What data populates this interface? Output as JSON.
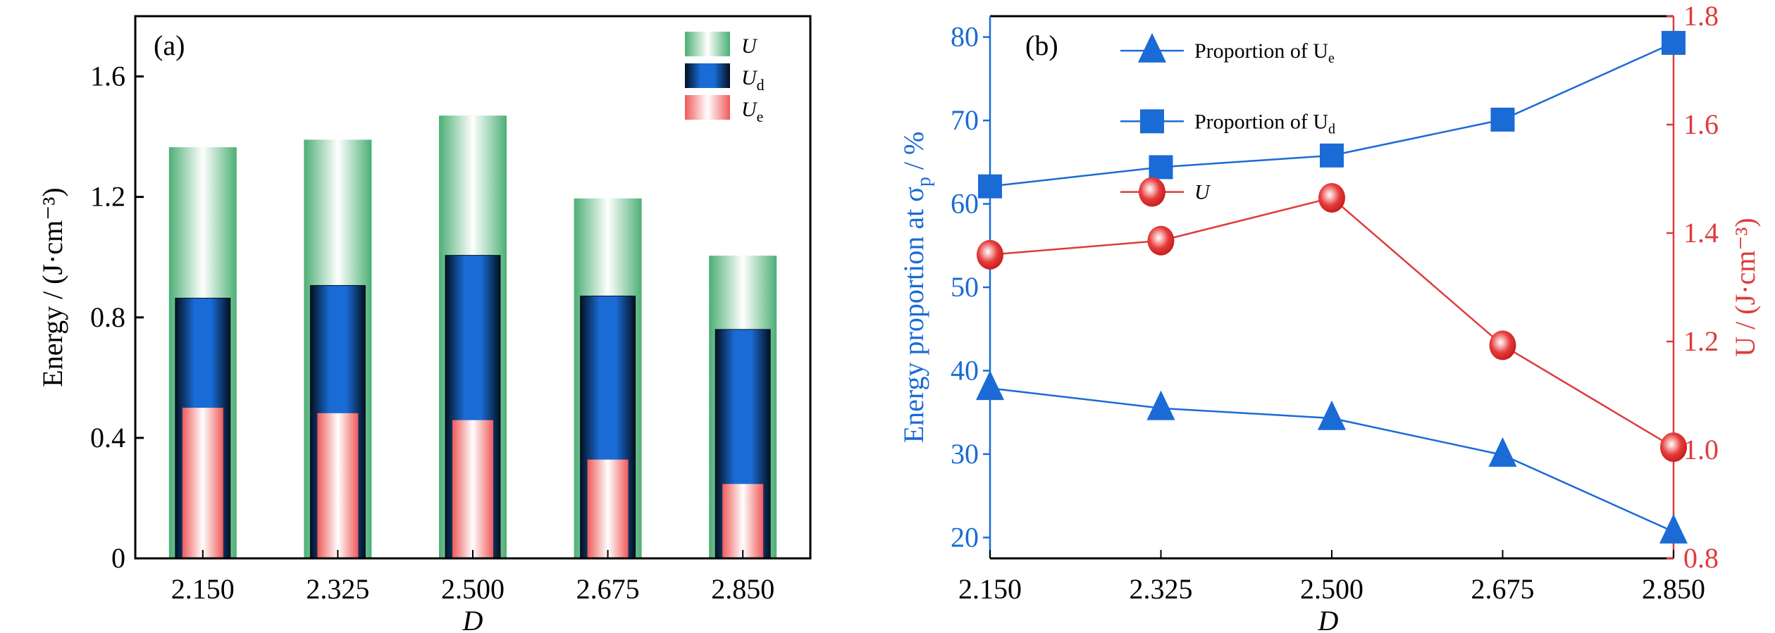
{
  "chart_data": [
    {
      "panel_label": "(a)",
      "type": "bar",
      "title": "",
      "xlabel": "D",
      "ylabel": "Energy / (J·cm⁻³)",
      "categories": [
        "2.150",
        "2.325",
        "2.500",
        "2.675",
        "2.850"
      ],
      "ylim": [
        0,
        1.8
      ],
      "yticks": [
        "0",
        "0.4",
        "0.8",
        "1.2",
        "1.6"
      ],
      "ytick_values": [
        0,
        0.4,
        0.8,
        1.2,
        1.6
      ],
      "legend_position": "top-right",
      "grid": false,
      "series": [
        {
          "name": "U",
          "legend_main": "U",
          "legend_sub": "",
          "color": "#4caf75",
          "values": [
            1.365,
            1.39,
            1.47,
            1.195,
            1.005
          ]
        },
        {
          "name": "Ud",
          "legend_main": "U",
          "legend_sub": "d",
          "color": "#1a6bd6",
          "values": [
            0.864,
            0.906,
            1.006,
            0.871,
            0.76
          ]
        },
        {
          "name": "Ue",
          "legend_main": "U",
          "legend_sub": "e",
          "color": "#f05a5a",
          "values": [
            0.5,
            0.482,
            0.459,
            0.328,
            0.247
          ]
        }
      ]
    },
    {
      "panel_label": "(b)",
      "type": "line",
      "title": "",
      "xlabel": "D",
      "ylabel_left": "Energy proportion at σp / %",
      "ylabel_left_main": "Energy proportion at σ",
      "ylabel_left_sub": "p",
      "ylabel_left_tail": " / %",
      "ylabel_right": "U / (J·cm⁻³)",
      "x": [
        "2.150",
        "2.325",
        "2.500",
        "2.675",
        "2.850"
      ],
      "ylim_left": [
        17.5,
        82.5
      ],
      "yticks_left": [
        "20",
        "30",
        "40",
        "50",
        "60",
        "70",
        "80"
      ],
      "ytick_values_left": [
        20,
        30,
        40,
        50,
        60,
        70,
        80
      ],
      "ylim_right": [
        0.8,
        1.8
      ],
      "yticks_right": [
        "0.8",
        "1.0",
        "1.2",
        "1.4",
        "1.6",
        "1.8"
      ],
      "ytick_values_right": [
        0.8,
        1.0,
        1.2,
        1.4,
        1.6,
        1.8
      ],
      "legend_position": "top-left",
      "grid": false,
      "series": [
        {
          "name": "Proportion of Ue",
          "legend_main": "Proportion of U",
          "legend_sub": "e",
          "axis": "left",
          "marker": "triangle",
          "color": "#1a6bd6",
          "values": [
            37.9,
            35.5,
            34.3,
            29.9,
            20.7
          ]
        },
        {
          "name": "Proportion of Ud",
          "legend_main": "Proportion of U",
          "legend_sub": "d",
          "axis": "left",
          "marker": "square",
          "color": "#1a6bd6",
          "values": [
            62.1,
            64.4,
            65.8,
            70.1,
            79.3
          ]
        },
        {
          "name": "U",
          "legend_main": "U",
          "legend_sub": "",
          "axis": "right",
          "marker": "circle",
          "color": "#e03a3a",
          "values": [
            1.36,
            1.386,
            1.465,
            1.193,
            1.005
          ]
        }
      ]
    }
  ]
}
